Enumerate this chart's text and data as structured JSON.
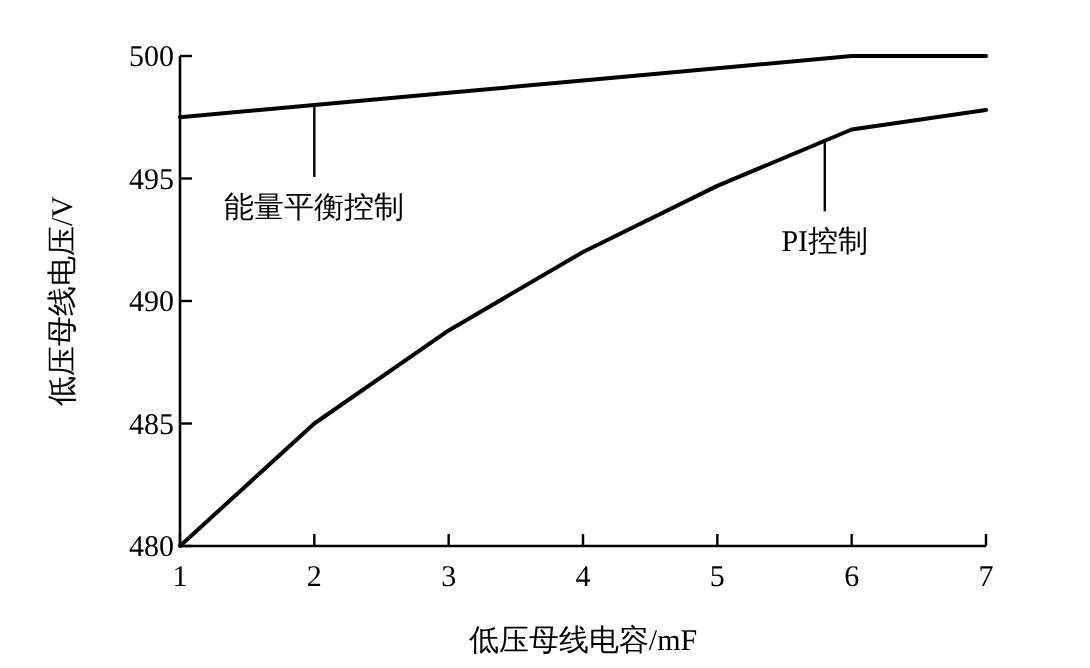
{
  "chart_data": {
    "type": "line",
    "xlabel": "低压母线电容/mF",
    "ylabel": "低压母线电压/V",
    "x": [
      1,
      2,
      3,
      4,
      5,
      6,
      7
    ],
    "series": [
      {
        "color": "#000000",
        "values": [
          497.5,
          498,
          498.5,
          499,
          499.5,
          500,
          500
        ]
      },
      {
        "color": "#000000",
        "values": [
          480,
          485,
          488.8,
          492,
          494.7,
          497,
          497.8
        ]
      }
    ],
    "annotations": [
      {
        "text": "能量平衡控制",
        "x": 2,
        "y": 498
      },
      {
        "text": "PI控制",
        "x": 5.8,
        "y": 496.6
      }
    ],
    "xlim": [
      1,
      7
    ],
    "ylim": [
      480,
      500
    ],
    "xticks": [
      1,
      2,
      3,
      4,
      5,
      6,
      7
    ],
    "yticks": [
      480,
      485,
      490,
      495,
      500
    ],
    "grid": false,
    "marker": "none",
    "line_style": "solid"
  }
}
